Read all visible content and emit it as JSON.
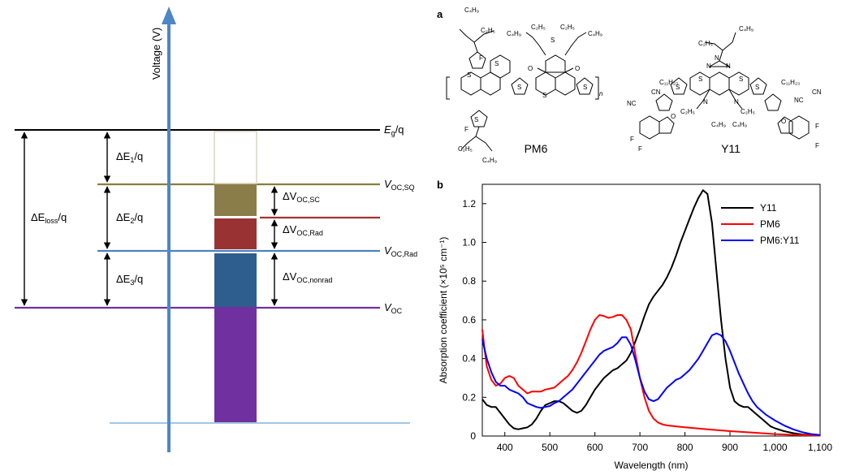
{
  "energy_diagram": {
    "axis_label": "Voltage (V)",
    "levels": [
      {
        "id": "eg",
        "label_main": "E",
        "label_sub": "g",
        "label_tail": "/q",
        "color": "#000000"
      },
      {
        "id": "vocsq",
        "label_main": "V",
        "label_sub": "OC,SQ",
        "label_tail": "",
        "color": "#8b7d3d"
      },
      {
        "id": "vocsc",
        "label_main": "",
        "label_sub": "",
        "label_tail": "",
        "color": "#a63232"
      },
      {
        "id": "vocrad",
        "label_main": "V",
        "label_sub": "OC,Rad",
        "label_tail": "",
        "color": "#4a83c2"
      },
      {
        "id": "voc",
        "label_main": "V",
        "label_sub": "OC",
        "label_tail": "",
        "color": "#7030a0"
      }
    ],
    "blocks": [
      {
        "id": "empty",
        "fill": "#ffffff",
        "stroke": "#d8d6c4"
      },
      {
        "id": "sc",
        "fill": "#8b7d49",
        "stroke": "#8b7d49"
      },
      {
        "id": "rad",
        "fill": "#993333",
        "stroke": "#993333"
      },
      {
        "id": "nonrad",
        "fill": "#2e5e8e",
        "stroke": "#2e5e8e"
      },
      {
        "id": "voc",
        "fill": "#7030a0",
        "stroke": "#7030a0"
      }
    ],
    "left_arrows": [
      {
        "label_pre": "ΔE",
        "label_sub": "1",
        "label_post": "/q"
      },
      {
        "label_pre": "ΔE",
        "label_sub": "2",
        "label_post": "/q"
      },
      {
        "label_pre": "ΔE",
        "label_sub": "3",
        "label_post": "/q"
      }
    ],
    "loss_arrow": {
      "label_pre": "ΔE",
      "label_sub": "loss",
      "label_post": "/q"
    },
    "right_arrows": [
      {
        "label_pre": "ΔV",
        "label_sub": "OC,SC"
      },
      {
        "label_pre": "ΔV",
        "label_sub": "OC,Rad"
      },
      {
        "label_pre": "ΔV",
        "label_sub": "OC,nonrad"
      }
    ]
  },
  "panel_a": {
    "panel_letter": "a",
    "molecule1_name": "PM6",
    "molecule2_name": "Y11"
  },
  "panel_b": {
    "panel_letter": "b"
  },
  "chart_data": {
    "type": "line",
    "xlabel": "Wavelength (nm)",
    "ylabel": "Absorption coefficient (×10⁵ cm⁻¹)",
    "xlim": [
      350,
      1100
    ],
    "ylim": [
      0,
      1.3
    ],
    "xticks": [
      400,
      500,
      600,
      700,
      800,
      900,
      1000,
      1100
    ],
    "xtick_labels": [
      "400",
      "500",
      "600",
      "700",
      "800",
      "900",
      "1,000",
      "1,100"
    ],
    "yticks": [
      0,
      0.2,
      0.4,
      0.6,
      0.8,
      1.0,
      1.2
    ],
    "ytick_labels": [
      "0",
      "0.2",
      "0.4",
      "0.6",
      "0.8",
      "1.0",
      "1.2"
    ],
    "legend_position": "top-right",
    "series": [
      {
        "name": "Y11",
        "color": "#000000",
        "x": [
          350,
          360,
          370,
          380,
          390,
          400,
          410,
          420,
          430,
          440,
          450,
          460,
          470,
          480,
          490,
          500,
          510,
          520,
          530,
          540,
          550,
          560,
          570,
          580,
          590,
          600,
          610,
          620,
          630,
          640,
          650,
          660,
          670,
          680,
          690,
          700,
          710,
          720,
          730,
          740,
          750,
          760,
          770,
          780,
          790,
          800,
          810,
          820,
          830,
          840,
          850,
          860,
          870,
          880,
          890,
          900,
          910,
          920,
          930,
          940,
          950,
          960,
          970,
          980,
          990,
          1000,
          1020,
          1040,
          1060,
          1080,
          1100
        ],
        "y": [
          0.19,
          0.16,
          0.15,
          0.15,
          0.12,
          0.09,
          0.06,
          0.04,
          0.035,
          0.04,
          0.045,
          0.06,
          0.09,
          0.13,
          0.16,
          0.17,
          0.18,
          0.18,
          0.17,
          0.15,
          0.13,
          0.12,
          0.13,
          0.16,
          0.2,
          0.24,
          0.27,
          0.3,
          0.32,
          0.34,
          0.35,
          0.37,
          0.39,
          0.43,
          0.49,
          0.55,
          0.62,
          0.68,
          0.72,
          0.75,
          0.78,
          0.82,
          0.87,
          0.93,
          1.0,
          1.06,
          1.12,
          1.18,
          1.23,
          1.27,
          1.25,
          1.1,
          0.85,
          0.6,
          0.4,
          0.25,
          0.18,
          0.16,
          0.15,
          0.15,
          0.13,
          0.11,
          0.09,
          0.07,
          0.05,
          0.04,
          0.025,
          0.015,
          0.008,
          0.004,
          0.002
        ]
      },
      {
        "name": "PM6",
        "color": "#ff0000",
        "x": [
          350,
          355,
          360,
          370,
          380,
          390,
          400,
          410,
          420,
          430,
          440,
          450,
          460,
          470,
          480,
          490,
          500,
          510,
          520,
          530,
          540,
          550,
          560,
          570,
          580,
          590,
          600,
          610,
          620,
          630,
          640,
          650,
          660,
          670,
          680,
          690,
          700,
          710,
          720,
          730,
          740,
          750,
          760,
          780,
          800,
          850,
          900,
          950,
          1000,
          1050,
          1100
        ],
        "y": [
          0.55,
          0.45,
          0.36,
          0.29,
          0.26,
          0.27,
          0.3,
          0.31,
          0.3,
          0.26,
          0.24,
          0.22,
          0.23,
          0.23,
          0.23,
          0.24,
          0.245,
          0.25,
          0.27,
          0.29,
          0.31,
          0.34,
          0.38,
          0.43,
          0.49,
          0.55,
          0.6,
          0.625,
          0.62,
          0.61,
          0.615,
          0.625,
          0.625,
          0.6,
          0.55,
          0.42,
          0.3,
          0.2,
          0.13,
          0.09,
          0.07,
          0.06,
          0.055,
          0.05,
          0.045,
          0.035,
          0.025,
          0.018,
          0.01,
          0.005,
          0.002
        ]
      },
      {
        "name": "PM6:Y11",
        "color": "#0000ff",
        "x": [
          350,
          360,
          370,
          380,
          390,
          400,
          410,
          420,
          430,
          440,
          450,
          460,
          470,
          480,
          490,
          500,
          510,
          520,
          530,
          540,
          550,
          560,
          570,
          580,
          590,
          600,
          610,
          620,
          630,
          640,
          650,
          660,
          670,
          680,
          690,
          700,
          710,
          720,
          730,
          740,
          750,
          760,
          770,
          780,
          790,
          800,
          810,
          820,
          830,
          840,
          850,
          860,
          870,
          880,
          890,
          900,
          910,
          920,
          930,
          940,
          950,
          960,
          980,
          1000,
          1020,
          1040,
          1060,
          1080,
          1100
        ],
        "y": [
          0.5,
          0.4,
          0.33,
          0.28,
          0.26,
          0.26,
          0.24,
          0.23,
          0.22,
          0.2,
          0.17,
          0.16,
          0.15,
          0.145,
          0.15,
          0.155,
          0.17,
          0.18,
          0.2,
          0.22,
          0.24,
          0.27,
          0.3,
          0.33,
          0.36,
          0.39,
          0.42,
          0.44,
          0.45,
          0.46,
          0.48,
          0.51,
          0.51,
          0.47,
          0.39,
          0.3,
          0.23,
          0.19,
          0.18,
          0.19,
          0.22,
          0.25,
          0.27,
          0.29,
          0.3,
          0.32,
          0.34,
          0.37,
          0.4,
          0.44,
          0.48,
          0.52,
          0.53,
          0.52,
          0.49,
          0.44,
          0.38,
          0.32,
          0.27,
          0.22,
          0.18,
          0.15,
          0.11,
          0.08,
          0.055,
          0.035,
          0.02,
          0.01,
          0.005
        ]
      }
    ]
  }
}
